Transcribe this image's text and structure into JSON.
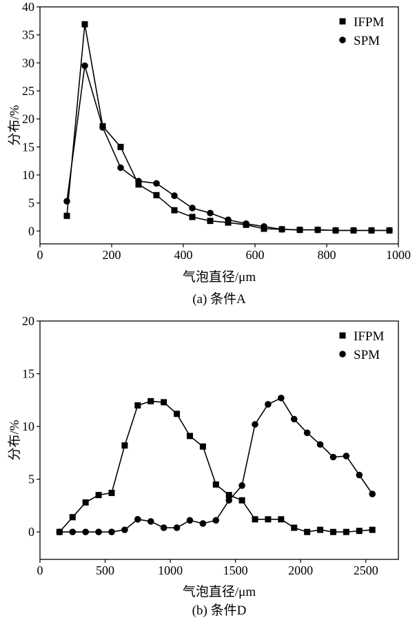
{
  "chart_data": [
    {
      "type": "line",
      "title": "(a) 条件A",
      "xlabel": "气泡直径/μm",
      "ylabel": "分布/%",
      "xlim": [
        0,
        1000
      ],
      "ylim": [
        -2.3,
        40
      ],
      "xticks": [
        0,
        200,
        400,
        600,
        800,
        1000
      ],
      "yticks": [
        0,
        5,
        10,
        15,
        20,
        25,
        30,
        35,
        40
      ],
      "grid": false,
      "legend": "top-right",
      "x": [
        75,
        125,
        175,
        225,
        275,
        325,
        375,
        425,
        475,
        525,
        575,
        625,
        675,
        725,
        775,
        825,
        875,
        925,
        975
      ],
      "series": [
        {
          "name": "IFPM",
          "marker": "square",
          "color": "#000000",
          "values": [
            2.7,
            36.9,
            18.7,
            15.0,
            8.3,
            6.4,
            3.7,
            2.5,
            1.8,
            1.5,
            1.1,
            0.4,
            0.3,
            0.2,
            0.2,
            0.1,
            0.1,
            0.1,
            0.1
          ]
        },
        {
          "name": "SPM",
          "marker": "circle",
          "color": "#000000",
          "values": [
            5.3,
            29.5,
            18.5,
            11.3,
            8.9,
            8.5,
            6.3,
            4.1,
            3.2,
            2.0,
            1.3,
            0.8,
            0.3,
            0.2,
            0.2,
            0.1,
            0.1,
            0.1,
            0.1
          ]
        }
      ]
    },
    {
      "type": "line",
      "title": "(b) 条件D",
      "xlabel": "气泡直径/μm",
      "ylabel": "分布/%",
      "xlim": [
        0,
        2750
      ],
      "ylim": [
        -2.6,
        20
      ],
      "xticks": [
        0,
        500,
        1000,
        1500,
        2000,
        2500
      ],
      "yticks": [
        0,
        5,
        10,
        15,
        20
      ],
      "grid": false,
      "legend": "top-right",
      "x": [
        150,
        250,
        350,
        450,
        550,
        650,
        750,
        850,
        950,
        1050,
        1150,
        1250,
        1350,
        1450,
        1550,
        1650,
        1750,
        1850,
        1950,
        2050,
        2150,
        2250,
        2350,
        2450,
        2550
      ],
      "series": [
        {
          "name": "IFPM",
          "marker": "square",
          "color": "#000000",
          "values": [
            0.0,
            1.4,
            2.8,
            3.5,
            3.7,
            8.2,
            12.0,
            12.4,
            12.3,
            11.2,
            9.1,
            8.1,
            4.5,
            3.5,
            3.0,
            1.2,
            1.2,
            1.2,
            0.4,
            0.0,
            0.2,
            0.0,
            0.0,
            0.1,
            0.2
          ]
        },
        {
          "name": "SPM",
          "marker": "circle",
          "color": "#000000",
          "values": [
            0.0,
            0.0,
            0.0,
            0.0,
            0.0,
            0.2,
            1.2,
            1.0,
            0.4,
            0.4,
            1.1,
            0.8,
            1.1,
            3.0,
            4.4,
            10.2,
            12.1,
            12.7,
            10.7,
            9.4,
            8.3,
            7.1,
            7.2,
            5.4,
            3.6
          ]
        }
      ]
    }
  ]
}
